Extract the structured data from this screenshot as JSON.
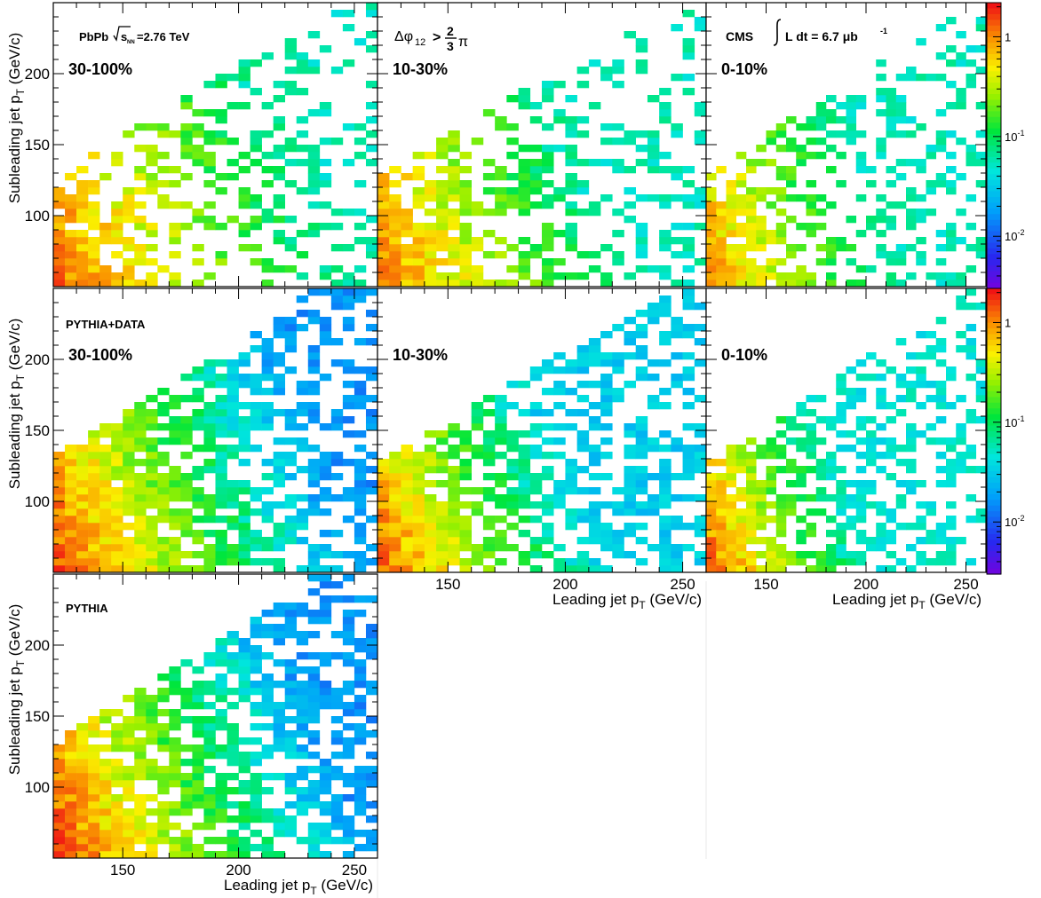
{
  "figure": {
    "panel_labels": {
      "row0_col0_title": "PbPb",
      "row0_col0_energy": "=2.76 TeV",
      "dphi_main": "Δφ",
      "dphi_sub": "12",
      "dphi_gt": ">",
      "dphi_num": "2",
      "dphi_den": "3",
      "dphi_pi": "π",
      "cms": "CMS",
      "lumi_text": "L dt = 6.7 μb",
      "lumi_exp": "-1",
      "pythia_data": "PYTHIA+DATA",
      "pythia": "PYTHIA"
    },
    "sqrt_s": "s",
    "sqrt_sub": "NN"
  },
  "chart_data": [
    {
      "type": "heatmap",
      "row": 0,
      "col": 0,
      "label": "30-100%",
      "sample": "PbPb data",
      "x_range": [
        120,
        260
      ],
      "y_range": [
        50,
        250
      ],
      "z_scale": "log",
      "z_range": [
        0.003,
        2.2
      ],
      "xlabel": "",
      "ylabel": "Subleading jet p_T (GeV/c)",
      "x_ticks": [
        150,
        200,
        250
      ],
      "y_ticks": [
        100,
        150,
        200
      ],
      "profile": {
        "decay": 42,
        "sat": 1.4,
        "density": 0.5,
        "floor": 0.06,
        "spread": 0.95
      }
    },
    {
      "type": "heatmap",
      "row": 0,
      "col": 1,
      "label": "10-30%",
      "sample": "PbPb data",
      "x_range": [
        120,
        260
      ],
      "y_range": [
        50,
        250
      ],
      "z_scale": "log",
      "z_range": [
        0.003,
        2.2
      ],
      "xlabel": "",
      "ylabel": "",
      "x_ticks": [
        150,
        200,
        250
      ],
      "y_ticks": [
        100,
        150,
        200
      ],
      "profile": {
        "decay": 36,
        "sat": 1.3,
        "density": 0.62,
        "floor": 0.06,
        "spread": 0.9
      }
    },
    {
      "type": "heatmap",
      "row": 0,
      "col": 2,
      "label": "0-10%",
      "sample": "PbPb data",
      "x_range": [
        120,
        260
      ],
      "y_range": [
        50,
        250
      ],
      "z_scale": "log",
      "z_range": [
        0.003,
        2.2
      ],
      "xlabel": "",
      "ylabel": "",
      "x_ticks": [
        150,
        200,
        250
      ],
      "y_ticks": [
        100,
        150,
        200
      ],
      "profile": {
        "decay": 34,
        "sat": 1.1,
        "density": 0.55,
        "floor": 0.06,
        "spread": 0.85
      }
    },
    {
      "type": "heatmap",
      "row": 1,
      "col": 0,
      "label": "30-100%",
      "sample": "PYTHIA+DATA",
      "x_range": [
        120,
        260
      ],
      "y_range": [
        50,
        250
      ],
      "z_scale": "log",
      "z_range": [
        0.003,
        2.2
      ],
      "xlabel": "",
      "ylabel": "Subleading jet p_T (GeV/c)",
      "x_ticks": [
        150,
        200,
        250
      ],
      "y_ticks": [
        100,
        150,
        200
      ],
      "profile": {
        "decay": 30,
        "sat": 1.8,
        "density": 0.92,
        "floor": 0.018,
        "spread": 1.0
      }
    },
    {
      "type": "heatmap",
      "row": 1,
      "col": 1,
      "label": "10-30%",
      "sample": "PYTHIA+DATA",
      "x_range": [
        120,
        260
      ],
      "y_range": [
        50,
        250
      ],
      "z_scale": "log",
      "z_range": [
        0.003,
        2.2
      ],
      "xlabel": "Leading jet p_T (GeV/c)",
      "ylabel": "",
      "x_ticks": [
        150,
        200,
        250
      ],
      "y_ticks": [
        100,
        150,
        200
      ],
      "profile": {
        "decay": 26,
        "sat": 1.6,
        "density": 0.8,
        "floor": 0.035,
        "spread": 0.9
      }
    },
    {
      "type": "heatmap",
      "row": 1,
      "col": 2,
      "label": "0-10%",
      "sample": "PYTHIA+DATA",
      "x_range": [
        120,
        260
      ],
      "y_range": [
        50,
        250
      ],
      "z_scale": "log",
      "z_range": [
        0.003,
        2.2
      ],
      "xlabel": "Leading jet p_T (GeV/c)",
      "ylabel": "",
      "x_ticks": [
        150,
        200,
        250
      ],
      "y_ticks": [
        100,
        150,
        200
      ],
      "profile": {
        "decay": 24,
        "sat": 1.6,
        "density": 0.7,
        "floor": 0.05,
        "spread": 0.85
      }
    },
    {
      "type": "heatmap",
      "row": 2,
      "col": 0,
      "label": "",
      "sample": "PYTHIA",
      "x_range": [
        120,
        260
      ],
      "y_range": [
        50,
        250
      ],
      "z_scale": "log",
      "z_range": [
        0.003,
        2.2
      ],
      "xlabel": "Leading jet p_T (GeV/c)",
      "ylabel": "Subleading jet p_T (GeV/c)",
      "x_ticks": [
        150,
        200,
        250
      ],
      "y_ticks": [
        100,
        150,
        200
      ],
      "profile": {
        "decay": 30,
        "sat": 1.9,
        "density": 0.94,
        "floor": 0.018,
        "spread": 1.0
      }
    }
  ],
  "colorbar": {
    "scale": "log",
    "range": [
      0.003,
      2.2
    ],
    "tick_labels": [
      {
        "value": 1,
        "base": "1",
        "exp": ""
      },
      {
        "value": 0.1,
        "base": "10",
        "exp": "-1"
      },
      {
        "value": 0.01,
        "base": "10",
        "exp": "-2"
      }
    ]
  }
}
